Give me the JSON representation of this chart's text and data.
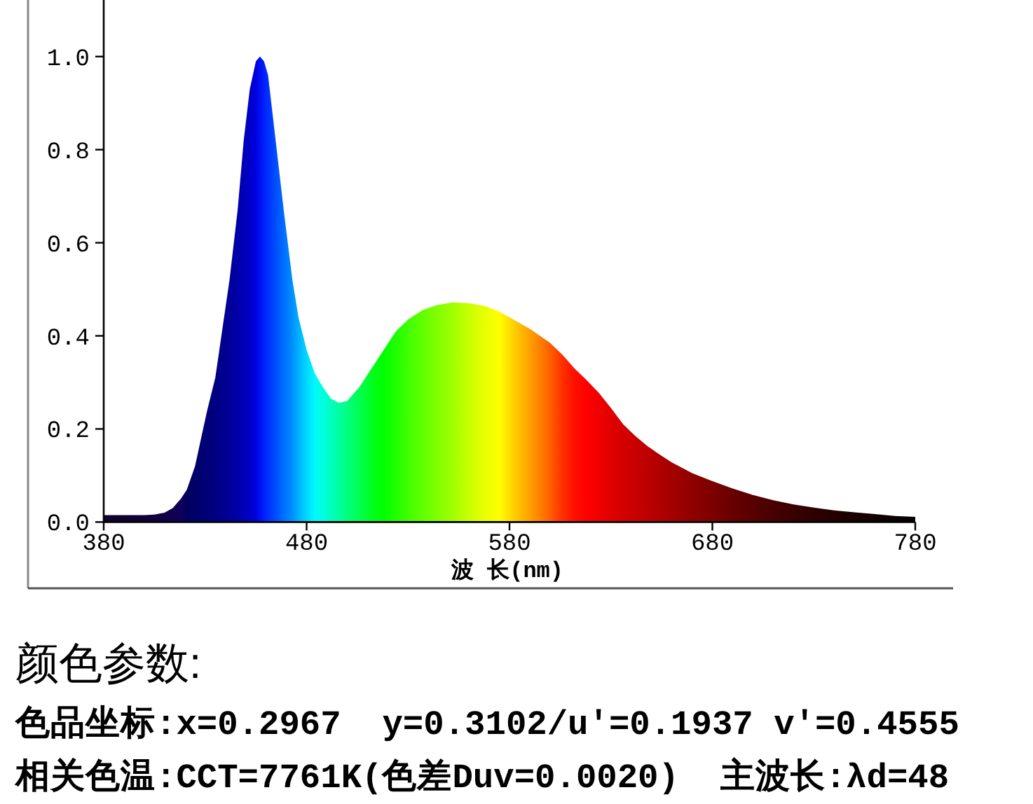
{
  "chart_data": {
    "type": "area",
    "xlabel": "波 长(nm)",
    "x": [
      380,
      390,
      400,
      405,
      410,
      414,
      418,
      421,
      425,
      428,
      431,
      435,
      438,
      442,
      446,
      449,
      452,
      455,
      457,
      459,
      461,
      465,
      469,
      473,
      476,
      480,
      484,
      488,
      492,
      496,
      500,
      506,
      512,
      518,
      524,
      530,
      537,
      544,
      552,
      560,
      568,
      575,
      582,
      590,
      600,
      606,
      612,
      618,
      624,
      630,
      636,
      642,
      648,
      654,
      660,
      670,
      680,
      690,
      700,
      710,
      720,
      730,
      740,
      750,
      760,
      770,
      780
    ],
    "values": [
      0.015,
      0.015,
      0.015,
      0.016,
      0.02,
      0.03,
      0.05,
      0.07,
      0.12,
      0.18,
      0.24,
      0.31,
      0.4,
      0.52,
      0.67,
      0.82,
      0.93,
      0.99,
      1.0,
      0.99,
      0.96,
      0.81,
      0.66,
      0.52,
      0.44,
      0.37,
      0.32,
      0.29,
      0.265,
      0.256,
      0.26,
      0.29,
      0.33,
      0.37,
      0.41,
      0.435,
      0.455,
      0.466,
      0.472,
      0.47,
      0.464,
      0.452,
      0.435,
      0.415,
      0.385,
      0.36,
      0.33,
      0.305,
      0.278,
      0.245,
      0.21,
      0.185,
      0.163,
      0.145,
      0.128,
      0.105,
      0.088,
      0.072,
      0.058,
      0.047,
      0.038,
      0.031,
      0.025,
      0.021,
      0.017,
      0.013,
      0.011
    ],
    "colors": [
      "#100030",
      "#100030",
      "#100038",
      "#100040",
      "#100048",
      "#100050",
      "#100058",
      "#000060",
      "#000068",
      "#000070",
      "#000078",
      "#000080",
      "#00008c",
      "#000098",
      "#0000a8",
      "#0000b8",
      "#0000c8",
      "#0000e0",
      "#0010f0",
      "#0020ff",
      "#0030ff",
      "#0050ff",
      "#0070ff",
      "#0090ff",
      "#00b0ff",
      "#00d8ff",
      "#00f8ff",
      "#00ffe0",
      "#00ffc0",
      "#00ffa0",
      "#00ff80",
      "#00ff50",
      "#00ff20",
      "#00ff00",
      "#20ff00",
      "#40ff00",
      "#60ff00",
      "#80ff00",
      "#a0ff00",
      "#c8ff00",
      "#e8ff00",
      "#ffff00",
      "#ffd000",
      "#ffa000",
      "#ff6000",
      "#ff3000",
      "#ff1000",
      "#ff0000",
      "#f00000",
      "#e00000",
      "#d40000",
      "#c80000",
      "#bc0000",
      "#b00000",
      "#a40000",
      "#900000",
      "#7c0000",
      "#680000",
      "#580000",
      "#480000",
      "#3a0000",
      "#2e0000",
      "#240000",
      "#1a0000",
      "#120000",
      "#0c0000",
      "#080000"
    ],
    "xlim": [
      380,
      780
    ],
    "ylim": [
      0,
      1.12
    ],
    "xticks": [
      380,
      480,
      580,
      680,
      780
    ],
    "yticks": [
      {
        "value": 0,
        "label": "0.0"
      },
      0.2,
      0.4,
      0.6,
      0.8,
      {
        "value": 1,
        "label": "1.0"
      }
    ],
    "annotations": [
      "颜色参数:",
      "色品坐标:x=0.2967  y=0.3102/u'=0.1937 v'=0.4555",
      "相关色温:CCT=7761K(色差Duv=0.0020)  主波长:λd=48"
    ]
  }
}
